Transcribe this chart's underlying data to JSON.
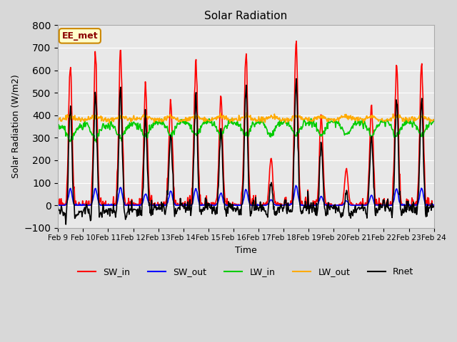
{
  "title": "Solar Radiation",
  "xlabel": "Time",
  "ylabel": "Solar Radiation (W/m2)",
  "ylim": [
    -100,
    800
  ],
  "annotation": "EE_met",
  "fig_facecolor": "#d8d8d8",
  "plot_bg_color": "#e8e8e8",
  "series": {
    "SW_in": {
      "color": "#ff0000",
      "lw": 1.2
    },
    "SW_out": {
      "color": "#0000ff",
      "lw": 1.2
    },
    "LW_in": {
      "color": "#00cc00",
      "lw": 1.2
    },
    "LW_out": {
      "color": "#ffaa00",
      "lw": 1.2
    },
    "Rnet": {
      "color": "#000000",
      "lw": 1.2
    }
  },
  "xtick_labels": [
    "Feb 9",
    "Feb 10",
    "Feb 11",
    "Feb 12",
    "Feb 13",
    "Feb 14",
    "Feb 15",
    "Feb 16",
    "Feb 17",
    "Feb 18",
    "Feb 19",
    "Feb 20",
    "Feb 21",
    "Feb 22",
    "Feb 23",
    "Feb 24"
  ],
  "n_days": 15,
  "sw_in_peaks": [
    630,
    660,
    680,
    525,
    465,
    660,
    475,
    670,
    210,
    740,
    400,
    160,
    440,
    630,
    630
  ],
  "sw_out_peaks": [
    75,
    75,
    80,
    50,
    65,
    75,
    55,
    70,
    25,
    90,
    40,
    20,
    45,
    75,
    75
  ],
  "lw_in_base": 370,
  "lw_out_base": 380,
  "pts_per_day": 48
}
